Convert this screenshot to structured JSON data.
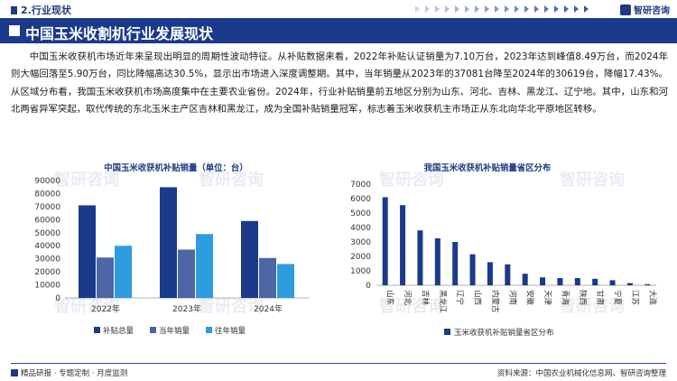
{
  "header": {
    "section": "2.行业现状",
    "brand": "智研咨询"
  },
  "title": "中国玉米收割机行业发展现状",
  "paragraph": "中国玉米收获机市场近年来呈现出明显的周期性波动特征。从补贴数据来看，2022年补贴认证销量为7.10万台，2023年达到峰值8.49万台，而2024年则大幅回落至5.90万台，同比降幅高达30.5%，显示出市场进入深度调整期。其中，当年销量从2023年的37081台降至2024年的30619台，降幅17.43%。从区域分布看，我国玉米收获机市场高度集中在主要农业省份。2024年，行业补贴销量前五地区分别为山东、河北、吉林、黑龙江、辽宁地。其中，山东和河北两省异军突起，取代传统的东北玉米主产区吉林和黑龙江，成为全国补贴销量冠军，标志着玉米收获机主市场正从东北向华北平原地区转移。",
  "watermark": "智研咨询",
  "footer": {
    "left": "精品研报 · 专题定制 · 月度监测",
    "right": "资料来源：中国农业机械化信息网、智研咨询整理"
  },
  "chart_data": [
    {
      "type": "bar",
      "title": "中国玉米收获机补贴销量（单位：台）",
      "categories": [
        "2022年",
        "2023年",
        "2024年"
      ],
      "series": [
        {
          "name": "补贴总量",
          "color": "#1b3a8c",
          "values": [
            71000,
            84900,
            59000
          ]
        },
        {
          "name": "当年销量",
          "color": "#4c66a6",
          "values": [
            31000,
            37081,
            30619
          ]
        },
        {
          "name": "往年销量",
          "color": "#2e9de0",
          "values": [
            40000,
            49000,
            26000
          ]
        }
      ],
      "ylim": [
        0,
        90000
      ],
      "yticks": [
        0,
        10000,
        20000,
        30000,
        40000,
        50000,
        60000,
        70000,
        80000,
        90000
      ],
      "legend": "bottom",
      "grid": false
    },
    {
      "type": "bar",
      "title": "我国玉米收获机补贴销量省区分布",
      "categories": [
        "山东",
        "河北",
        "吉林",
        "黑龙江",
        "辽宁",
        "山西",
        "内蒙古",
        "河南",
        "安徽",
        "天津",
        "青海",
        "陕西",
        "甘肃",
        "宁夏",
        "江苏",
        "大连"
      ],
      "series": [
        {
          "name": "玉米收获机补贴销量省区分布",
          "color": "#1b3a8c",
          "values": [
            6100,
            5550,
            3800,
            3250,
            3000,
            2150,
            1600,
            1450,
            800,
            550,
            500,
            500,
            450,
            350,
            150,
            80
          ]
        }
      ],
      "ylim": [
        0,
        7000
      ],
      "yticks": [
        0,
        1000,
        2000,
        3000,
        4000,
        5000,
        6000,
        7000
      ],
      "legend": "bottom",
      "grid": false
    }
  ]
}
